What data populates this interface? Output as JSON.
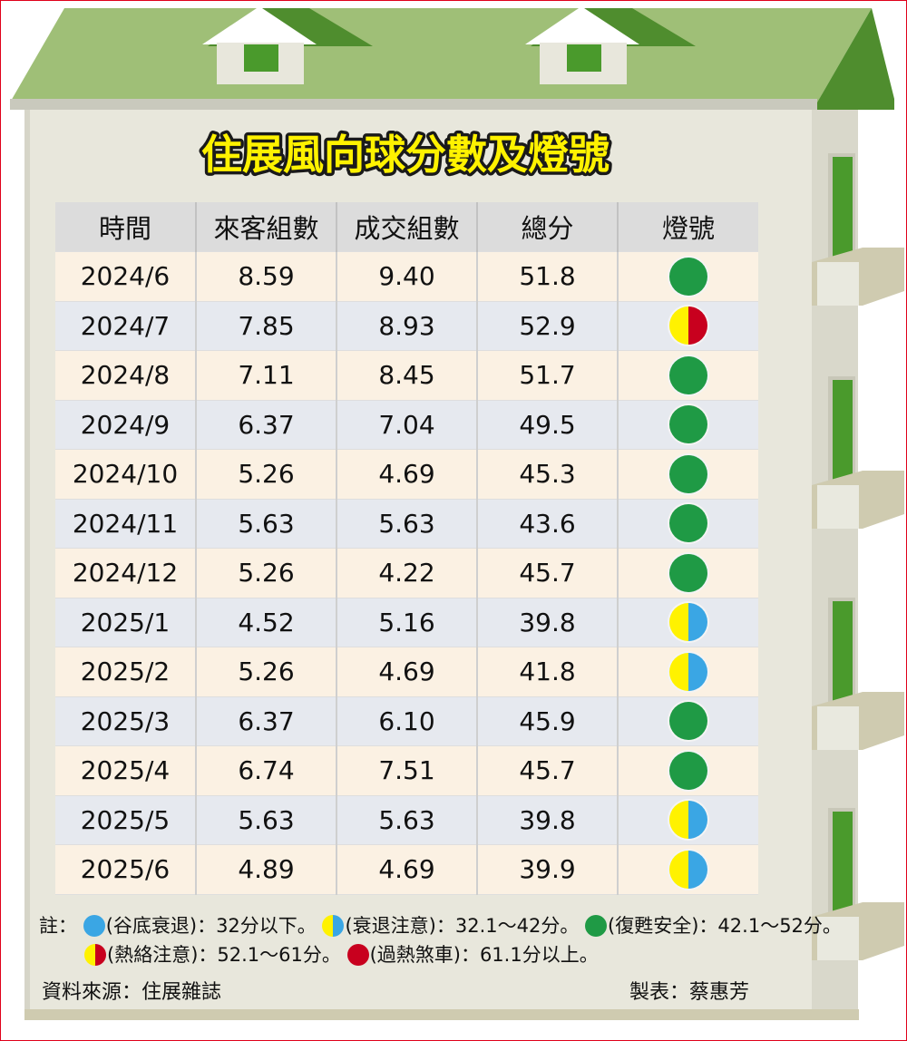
{
  "title": "住展風向球分數及燈號",
  "table": {
    "headers": [
      "時間",
      "來客組數",
      "成交組數",
      "總分",
      "燈號"
    ],
    "rows": [
      {
        "time": "2024/6",
        "visitors": "8.59",
        "deals": "9.40",
        "score": "51.8",
        "light": "green"
      },
      {
        "time": "2024/7",
        "visitors": "7.85",
        "deals": "8.93",
        "score": "52.9",
        "light": "yellow-red"
      },
      {
        "time": "2024/8",
        "visitors": "7.11",
        "deals": "8.45",
        "score": "51.7",
        "light": "green"
      },
      {
        "time": "2024/9",
        "visitors": "6.37",
        "deals": "7.04",
        "score": "49.5",
        "light": "green"
      },
      {
        "time": "2024/10",
        "visitors": "5.26",
        "deals": "4.69",
        "score": "45.3",
        "light": "green"
      },
      {
        "time": "2024/11",
        "visitors": "5.63",
        "deals": "5.63",
        "score": "43.6",
        "light": "green"
      },
      {
        "time": "2024/12",
        "visitors": "5.26",
        "deals": "4.22",
        "score": "45.7",
        "light": "green"
      },
      {
        "time": "2025/1",
        "visitors": "4.52",
        "deals": "5.16",
        "score": "39.8",
        "light": "yellow-blue"
      },
      {
        "time": "2025/2",
        "visitors": "5.26",
        "deals": "4.69",
        "score": "41.8",
        "light": "yellow-blue"
      },
      {
        "time": "2025/3",
        "visitors": "6.37",
        "deals": "6.10",
        "score": "45.9",
        "light": "green"
      },
      {
        "time": "2025/4",
        "visitors": "6.74",
        "deals": "7.51",
        "score": "45.7",
        "light": "green"
      },
      {
        "time": "2025/5",
        "visitors": "5.63",
        "deals": "5.63",
        "score": "39.8",
        "light": "yellow-blue"
      },
      {
        "time": "2025/6",
        "visitors": "4.89",
        "deals": "4.69",
        "score": "39.9",
        "light": "yellow-blue"
      }
    ]
  },
  "notes": {
    "prefix": "註：",
    "items": [
      {
        "light": "blue",
        "text": "(谷底衰退)：32分以下。"
      },
      {
        "light": "yellow-blue",
        "text": "(衰退注意)：32.1～42分。"
      },
      {
        "light": "green",
        "text": "(復甦安全)：42.1～52分。"
      },
      {
        "light": "yellow-red",
        "text": "(熱絡注意)：52.1～61分。"
      },
      {
        "light": "red",
        "text": "(過熱煞車)：61.1分以上。"
      }
    ]
  },
  "source": "資料來源：住展雜誌",
  "author": "製表：蔡惠芳",
  "colors": {
    "roof": "#9fbf77",
    "roof_dark": "#4f8d2e",
    "wall": "#e8e7dc",
    "window_green": "#4a9a2c",
    "light_green": "#1f9a45",
    "light_yellow": "#fff200",
    "light_blue": "#3aa6e4",
    "light_red": "#c8001e",
    "frame": "#e0001a"
  }
}
